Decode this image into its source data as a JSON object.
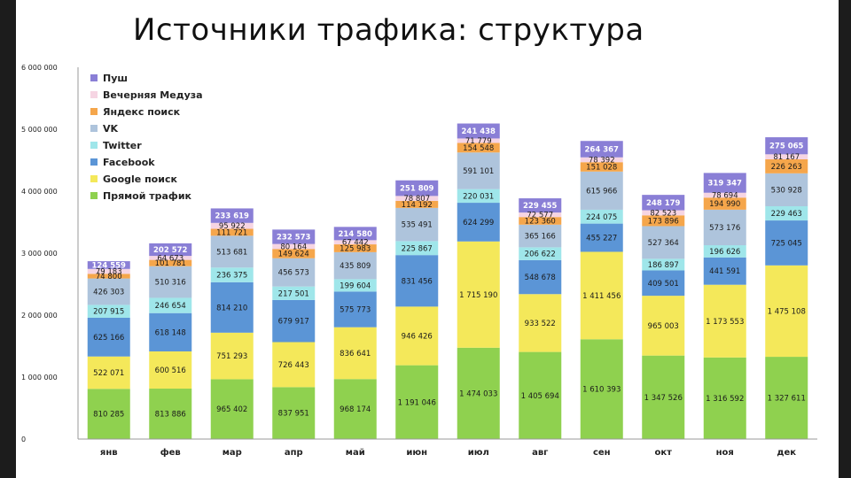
{
  "title": "Источники трафика: структура",
  "chart_data": {
    "type": "bar",
    "stacked": true,
    "categories": [
      "янв",
      "фев",
      "мар",
      "апр",
      "май",
      "июн",
      "июл",
      "авг",
      "сен",
      "окт",
      "ноя",
      "дек"
    ],
    "ylim": [
      0,
      6000000
    ],
    "yticks": [
      0,
      1000000,
      2000000,
      3000000,
      4000000,
      5000000,
      6000000
    ],
    "ytick_labels": [
      "0",
      "1 000 000",
      "2 000 000",
      "3 000 000",
      "4 000 000",
      "5 000 000",
      "6 000 000"
    ],
    "legend_position": "top-left",
    "series": [
      {
        "name": "Прямой трафик",
        "color": "#8fd14f",
        "values": [
          810285,
          813886,
          965402,
          837951,
          968174,
          1191046,
          1474033,
          1405694,
          1610393,
          1347526,
          1316592,
          1327611
        ],
        "labels": [
          "810 285",
          "813 886",
          "965 402",
          "837 951",
          "968 174",
          "1 191 046",
          "1 474 033",
          "1 405 694",
          "1 610 393",
          "1 347 526",
          "1 316 592",
          "1 327 611"
        ]
      },
      {
        "name": "Google поиск",
        "color": "#f4e85a",
        "values": [
          522071,
          600516,
          751293,
          726443,
          836641,
          946426,
          1715190,
          933522,
          1411456,
          965003,
          1173553,
          1475108
        ],
        "labels": [
          "522 071",
          "600 516",
          "751 293",
          "726 443",
          "836 641",
          "946 426",
          "1 715 190",
          "933 522",
          "1 411 456",
          "965 003",
          "1 173 553",
          "1 475 108"
        ]
      },
      {
        "name": "Facebook",
        "color": "#5b95d6",
        "values": [
          625166,
          618148,
          814210,
          679917,
          575773,
          831456,
          624299,
          548678,
          455227,
          409501,
          441591,
          725045
        ],
        "labels": [
          "625 166",
          "618 148",
          "814 210",
          "679 917",
          "575 773",
          "831 456",
          "624 299",
          "548 678",
          "455 227",
          "409 501",
          "441 591",
          "725 045"
        ]
      },
      {
        "name": "Twitter",
        "color": "#9fe6ea",
        "values": [
          207915,
          246654,
          236375,
          217501,
          199604,
          225867,
          220031,
          206622,
          224075,
          186897,
          196626,
          229463
        ],
        "labels": [
          "207 915",
          "246 654",
          "236 375",
          "217 501",
          "199 604",
          "225 867",
          "220 031",
          "206 622",
          "224 075",
          "186 897",
          "196 626",
          "229 463"
        ]
      },
      {
        "name": "VK",
        "color": "#aec4dc",
        "values": [
          426303,
          510316,
          513681,
          456573,
          435809,
          535491,
          591101,
          365166,
          615966,
          527364,
          573176,
          530928
        ],
        "labels": [
          "426 303",
          "510 316",
          "513 681",
          "456 573",
          "435 809",
          "535 491",
          "591 101",
          "365 166",
          "615 966",
          "527 364",
          "573 176",
          "530 928"
        ]
      },
      {
        "name": "Яндекс поиск",
        "color": "#f5a64b",
        "values": [
          74800,
          101781,
          111721,
          149624,
          125983,
          114192,
          154548,
          123360,
          151028,
          173896,
          194990,
          226263
        ],
        "labels": [
          "74 800",
          "101 781",
          "111 721",
          "149 624",
          "125 983",
          "114 192",
          "154 548",
          "123 360",
          "151 028",
          "173 896",
          "194 990",
          "226 263"
        ]
      },
      {
        "name": "Вечерняя Медуза",
        "color": "#f6d5e3",
        "values": [
          79183,
          64673,
          95922,
          80164,
          67442,
          78807,
          71779,
          72577,
          78392,
          82523,
          78694,
          81167
        ],
        "labels": [
          "79 183",
          "64 673",
          "95 922",
          "80 164",
          "67 442",
          "78 807",
          "71 779",
          "72 577",
          "78 392",
          "82 523",
          "78 694",
          "81 167"
        ]
      },
      {
        "name": "Пуш",
        "color": "#8a7fd6",
        "values": [
          124559,
          202572,
          233619,
          232573,
          214580,
          251809,
          241438,
          229455,
          264367,
          248179,
          319347,
          275065
        ],
        "labels": [
          "124 559",
          "202 572",
          "233 619",
          "232 573",
          "214 580",
          "251 809",
          "241 438",
          "229 455",
          "264 367",
          "248 179",
          "319 347",
          "275 065"
        ]
      }
    ]
  }
}
